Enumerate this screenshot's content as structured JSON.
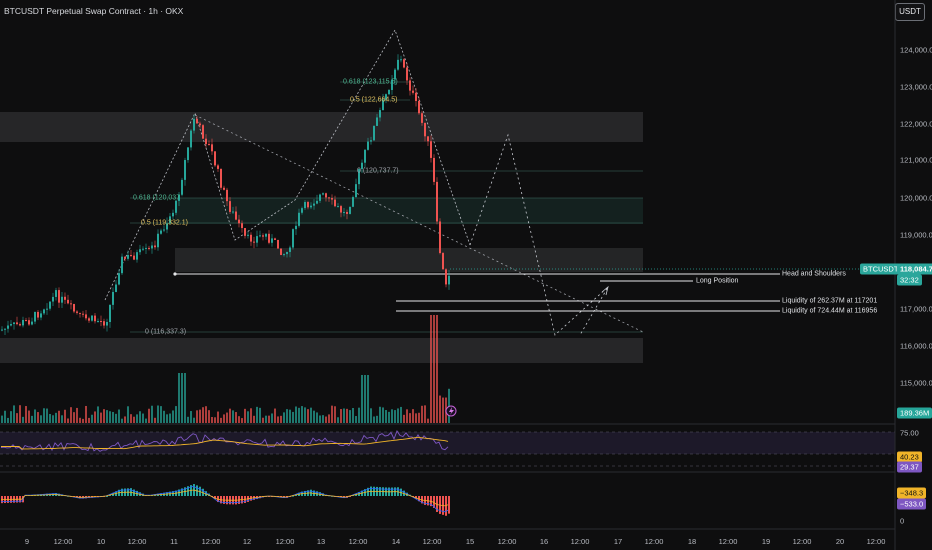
{
  "header": {
    "title": "BTCUSDT Perpetual Swap Contract · 1h · OKX",
    "currency_button": "USDT"
  },
  "price_axis": {
    "labels": [
      "124,000.0",
      "123,000.0",
      "122,000.0",
      "121,000.0",
      "120,000.0",
      "119,000.0",
      "117,000.0",
      "116,000.0",
      "115,000.0"
    ]
  },
  "time_axis": {
    "labels": [
      "9",
      "12:00",
      "10",
      "12:00",
      "11",
      "12:00",
      "12",
      "12:00",
      "13",
      "12:00",
      "14",
      "12:00",
      "15",
      "12:00",
      "16",
      "12:00",
      "17",
      "12:00",
      "18",
      "12:00",
      "19",
      "12:00",
      "20",
      "12:00"
    ]
  },
  "badges": {
    "symbol": "BTCUSDT.P",
    "price": "118,084.7",
    "countdown": "32:32",
    "volume": "189.36M",
    "rsi_top": "75.00",
    "rsi_value": "40.23",
    "rsi_signal": "29.37",
    "macd_a": "−348.3",
    "macd_b": "−533.0",
    "macd_zero": "0"
  },
  "annotations": {
    "head_shoulders": "Head and Shoulders",
    "long_position": "Long Position",
    "liq1": "Liquidity of 262.37M at 117201",
    "liq2": "Liquidity of 724.44M at 116956"
  },
  "fib_labels": {
    "f1": "0.618 (123,115.5)",
    "f2": "0.5 (122,664.5)",
    "f3": "0 (120,737.7)",
    "f4": "0.618 (120,037",
    "f5": "0.5 (119,332.1)",
    "f6": "0 (116,337.3)"
  },
  "colors": {
    "up": "#26a69a",
    "down": "#ef5350",
    "rsi": "#7e57c2",
    "signal": "#f0b429",
    "price_badge": "#2aa69b"
  }
}
